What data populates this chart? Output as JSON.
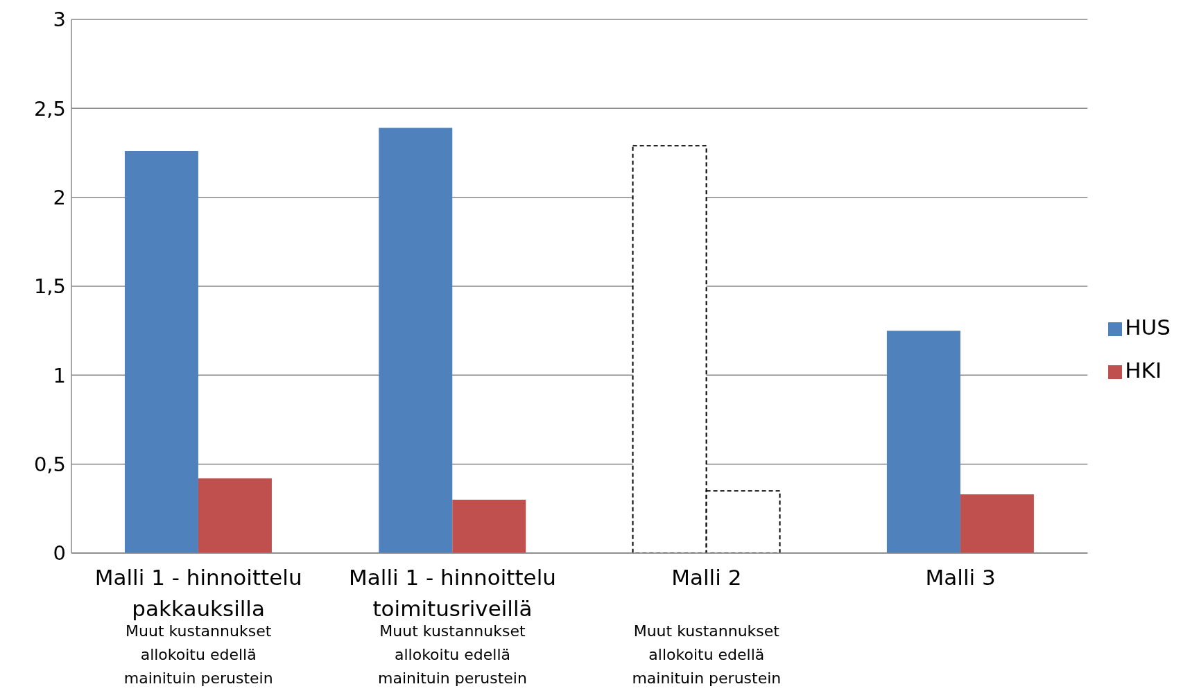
{
  "chart_data": {
    "type": "bar",
    "categories": [
      "Malli 1 - hinnoittelu pakkauksilla",
      "Malli 1 - hinnoittelu toimitusriveillä",
      "Malli 2",
      "Malli 3"
    ],
    "series": [
      {
        "name": "HUS",
        "color": "#4f81bd",
        "colors": [
          "#4f81bd",
          "#4f81bd",
          "#ffffff",
          "#4f81bd"
        ],
        "line_style": [
          "solid",
          "solid",
          "dashed",
          "solid"
        ],
        "values": [
          2.26,
          2.39,
          2.29,
          1.25
        ]
      },
      {
        "name": "HKI",
        "color": "#c0504d",
        "colors": [
          "#c0504d",
          "#c0504d",
          "#ffffff",
          "#c0504d"
        ],
        "line_style": [
          "solid",
          "solid",
          "dashed",
          "solid"
        ],
        "values": [
          0.42,
          0.3,
          0.35,
          0.33
        ]
      }
    ],
    "ylim": [
      0,
      3
    ],
    "yticks": [
      0,
      {
        "value": 0.5,
        "label": "0,5"
      },
      1,
      {
        "value": 1.5,
        "label": "1,5"
      },
      2,
      {
        "value": 2.5,
        "label": "2,5"
      },
      3
    ],
    "grid": "y",
    "legend": "right",
    "annotations": [
      "Muut kustannukset allokoitu edellä mainituin perustein",
      "Muut kustannukset allokoitu edellä mainituin perustein",
      "Muut kustannukset allokoitu edellä mainituin perustein"
    ]
  }
}
